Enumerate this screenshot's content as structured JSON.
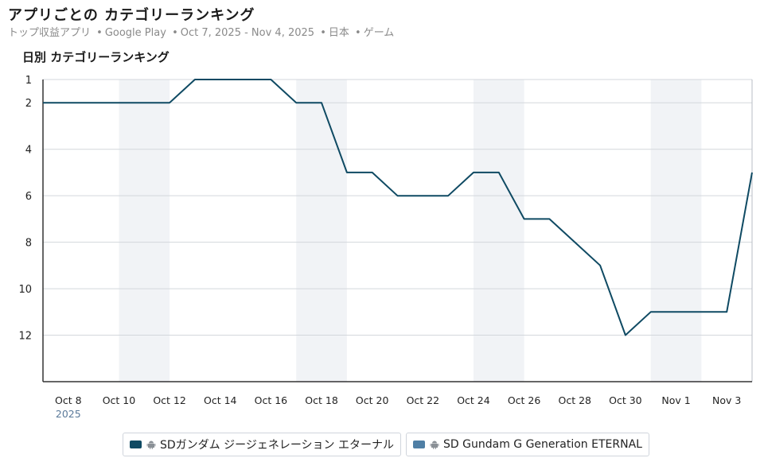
{
  "header": {
    "title": "アプリごとの カテゴリーランキング",
    "subtitle": {
      "category": "トップ収益アプリ",
      "store": "Google Play",
      "date_range": "Oct 7, 2025 - Nov 4, 2025",
      "country": "日本",
      "genre": "ゲーム",
      "separator": "•"
    }
  },
  "colors": {
    "series_primary": "#0f4a63",
    "series_secondary": "#4f7fa5",
    "weekend_band": "#f1f3f6",
    "grid": "#d3d7dc",
    "axis": "#333333"
  },
  "chart_data": {
    "type": "line",
    "title": "日別 カテゴリーランキング",
    "x_unit": "date",
    "x_start": "2025-10-07",
    "x_end": "2025-11-04",
    "ylim": [
      1,
      14
    ],
    "y_inverted": true,
    "y_ticks": [
      1,
      2,
      4,
      6,
      8,
      10,
      12
    ],
    "x_ticks": [
      {
        "date": "2025-10-08",
        "label": "Oct 8",
        "year": "2025"
      },
      {
        "date": "2025-10-10",
        "label": "Oct 10"
      },
      {
        "date": "2025-10-12",
        "label": "Oct 12"
      },
      {
        "date": "2025-10-14",
        "label": "Oct 14"
      },
      {
        "date": "2025-10-16",
        "label": "Oct 16"
      },
      {
        "date": "2025-10-18",
        "label": "Oct 18"
      },
      {
        "date": "2025-10-20",
        "label": "Oct 20"
      },
      {
        "date": "2025-10-22",
        "label": "Oct 22"
      },
      {
        "date": "2025-10-24",
        "label": "Oct 24"
      },
      {
        "date": "2025-10-26",
        "label": "Oct 26"
      },
      {
        "date": "2025-10-28",
        "label": "Oct 28"
      },
      {
        "date": "2025-10-30",
        "label": "Oct 30"
      },
      {
        "date": "2025-11-01",
        "label": "Nov 1"
      },
      {
        "date": "2025-11-03",
        "label": "Nov 3"
      }
    ],
    "weekend_bands": [
      [
        "2025-10-10",
        "2025-10-12"
      ],
      [
        "2025-10-17",
        "2025-10-19"
      ],
      [
        "2025-10-24",
        "2025-10-26"
      ],
      [
        "2025-10-31",
        "2025-11-02"
      ]
    ],
    "grid": true,
    "series": [
      {
        "name": "SDガンダム ジージェネレーション エターナル",
        "color": "#0f4a63",
        "x": [
          "2025-10-07",
          "2025-10-08",
          "2025-10-09",
          "2025-10-10",
          "2025-10-11",
          "2025-10-12",
          "2025-10-13",
          "2025-10-14",
          "2025-10-15",
          "2025-10-16",
          "2025-10-17",
          "2025-10-18",
          "2025-10-19",
          "2025-10-20",
          "2025-10-21",
          "2025-10-22",
          "2025-10-23",
          "2025-10-24",
          "2025-10-25",
          "2025-10-26",
          "2025-10-27",
          "2025-10-28",
          "2025-10-29",
          "2025-10-30",
          "2025-10-31",
          "2025-11-01",
          "2025-11-02",
          "2025-11-03",
          "2025-11-04"
        ],
        "values": [
          2,
          2,
          2,
          2,
          2,
          2,
          1,
          1,
          1,
          1,
          2,
          2,
          5,
          5,
          6,
          6,
          6,
          5,
          5,
          7,
          7,
          8,
          9,
          12,
          11,
          11,
          11,
          11,
          5
        ]
      },
      {
        "name": "SD Gundam G Generation ETERNAL",
        "color": "#4f7fa5",
        "x": [],
        "values": []
      }
    ],
    "legend_position": "bottom-center"
  }
}
